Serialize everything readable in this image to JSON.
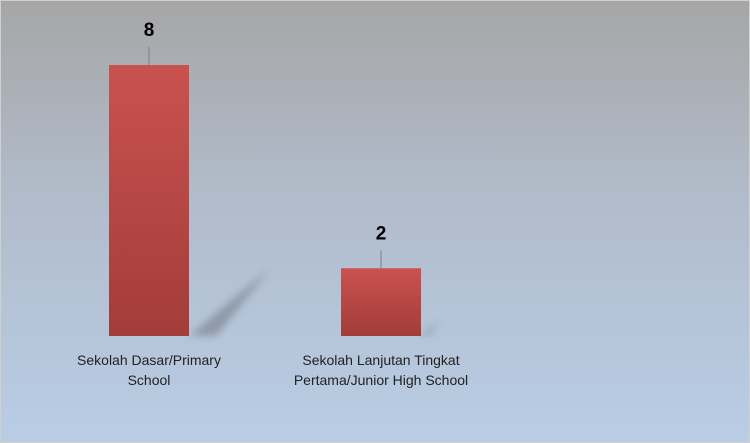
{
  "chart_data": {
    "type": "bar",
    "categories": [
      "Sekolah Dasar/Primary School",
      "Sekolah Lanjutan Tingkat Pertama/Junior High School"
    ],
    "values": [
      8,
      2
    ],
    "color": "#c0504d"
  }
}
